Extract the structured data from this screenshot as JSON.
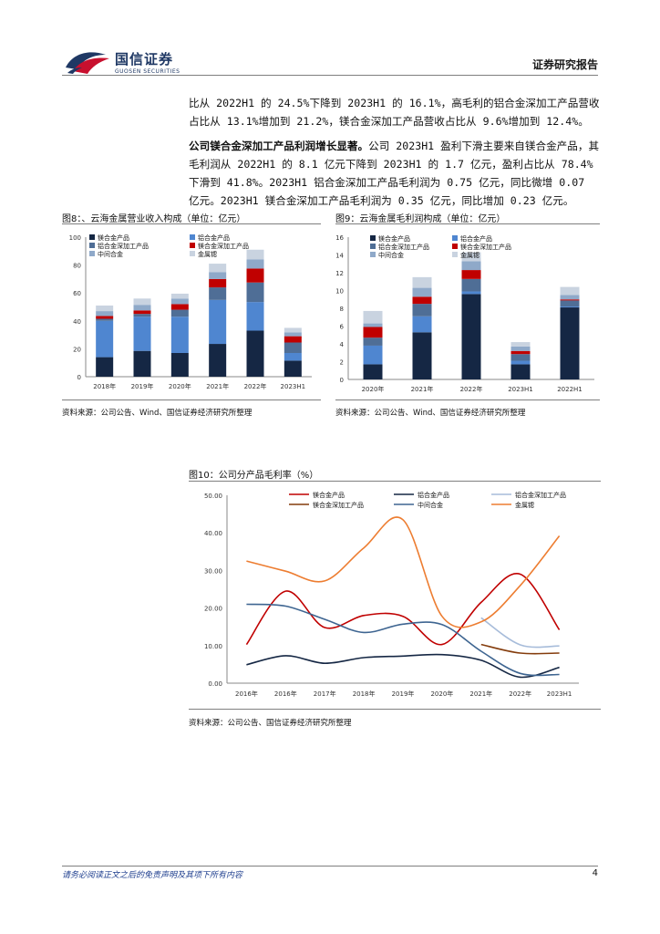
{
  "header": {
    "brand_cn": "国信证券",
    "brand_en": "GUOSEN SECURITIES",
    "report_type": "证券研究报告",
    "accent_color": "#1f3864",
    "logo_red": "#c8102e"
  },
  "body": {
    "para1": "比从 2022H1 的 24.5%下降到 2023H1 的 16.1%，高毛利的铝合金深加工产品营收占比从 13.1%增加到 21.2%，镁合金深加工产品营收占比从 9.6%增加到 12.4%。",
    "para2_bold": "公司镁合金深加工产品利润增长显著。",
    "para2_rest": "公司 2023H1 盈利下滑主要来自镁合金产品，其毛利润从 2022H1 的 8.1 亿元下降到 2023H1 的 1.7 亿元，盈利占比从 78.4%下滑到 41.8%。2023H1 铝合金深加工产品毛利润为 0.75 亿元，同比微增 0.07 亿元。2023H1 镁合金深加工产品毛利润为 0.35 亿元，同比增加 0.23 亿元。"
  },
  "figures": {
    "fig8_caption": "图8：、云海金属营业收入构成（单位：亿元）",
    "fig9_caption": "图9：云海金属毛利润构成（单位：亿元）",
    "fig10_caption": "图10：公司分产品毛利率（%）",
    "source_wind": "资料来源：公司公告、Wind、国信证券经济研究所整理",
    "source_plain": "资料来源：公司公告、国信证券经济研究所整理"
  },
  "chart_data": [
    {
      "type": "bar",
      "stacked": true,
      "title": "云海金属营业收入构成（单位：亿元）",
      "categories": [
        "2018年",
        "2019年",
        "2020年",
        "2021年",
        "2022年",
        "2023H1"
      ],
      "ylim": [
        0,
        100
      ],
      "yticks": [
        0,
        20,
        40,
        60,
        80,
        100
      ],
      "legend": [
        "镁合金产品",
        "铝合金产品",
        "铝合金深加工产品",
        "镁合金深加工产品",
        "中间合金",
        "金属锶"
      ],
      "colors": [
        "#152744",
        "#4f86d0",
        "#4f6e96",
        "#c00000",
        "#8fa9c9",
        "#c9d3e0"
      ],
      "series": [
        {
          "name": "镁合金产品",
          "values": [
            14,
            18.5,
            17,
            23.5,
            33,
            11.5
          ]
        },
        {
          "name": "铝合金产品",
          "values": [
            26,
            24.5,
            26,
            31.5,
            20.5,
            5.5
          ]
        },
        {
          "name": "铝合金深加工产品",
          "values": [
            1.5,
            2,
            5,
            9,
            14,
            7.5
          ]
        },
        {
          "name": "镁合金深加工产品",
          "values": [
            2,
            2.5,
            4,
            6,
            10,
            4.5
          ]
        },
        {
          "name": "中间合金",
          "values": [
            3.5,
            4,
            4,
            5,
            6.5,
            2.8
          ]
        },
        {
          "name": "金属锶",
          "values": [
            4,
            4.5,
            3.5,
            6,
            7,
            3.2
          ]
        }
      ]
    },
    {
      "type": "bar",
      "stacked": true,
      "title": "云海金属毛利润构成（单位：亿元）",
      "categories": [
        "2020年",
        "2021年",
        "2022年",
        "2023H1",
        "2022H1"
      ],
      "ylim": [
        0,
        16
      ],
      "yticks": [
        0,
        2,
        4,
        6,
        8,
        10,
        12,
        14,
        16
      ],
      "legend": [
        "镁合金产品",
        "铝合金产品",
        "铝合金深加工产品",
        "镁合金深加工产品",
        "中间合金",
        "金属锶"
      ],
      "colors": [
        "#152744",
        "#4f86d0",
        "#4f6e96",
        "#c00000",
        "#8fa9c9",
        "#c9d3e0"
      ],
      "series": [
        {
          "name": "镁合金产品",
          "values": [
            1.7,
            5.3,
            9.6,
            1.7,
            8.1
          ]
        },
        {
          "name": "铝合金产品",
          "values": [
            2.1,
            1.8,
            0.3,
            0.4,
            0.1
          ]
        },
        {
          "name": "铝合金深加工产品",
          "values": [
            0.9,
            1.4,
            1.4,
            0.75,
            0.68
          ]
        },
        {
          "name": "镁合金深加工产品",
          "values": [
            1.2,
            0.8,
            1.0,
            0.35,
            0.12
          ]
        },
        {
          "name": "中间合金",
          "values": [
            0.4,
            1.0,
            1.0,
            0.5,
            0.5
          ]
        },
        {
          "name": "金属锶",
          "values": [
            1.4,
            1.2,
            1.0,
            0.5,
            0.9
          ]
        }
      ]
    },
    {
      "type": "line",
      "title": "公司分产品毛利率（%）",
      "categories": [
        "2016年",
        "2016年",
        "2017年",
        "2018年",
        "2019年",
        "2020年",
        "2021年",
        "2022年",
        "2023H1"
      ],
      "ylim": [
        0,
        50
      ],
      "yticks": [
        "0.00",
        "10.00",
        "20.00",
        "30.00",
        "40.00",
        "50.00"
      ],
      "series": [
        {
          "name": "镁合金产品",
          "color": "#c00000",
          "values": [
            10.3,
            24.5,
            14.8,
            18.0,
            17.8,
            10.3,
            21.5,
            29.0,
            14.2
          ]
        },
        {
          "name": "铝合金产品",
          "color": "#152744",
          "values": [
            4.9,
            7.3,
            5.3,
            6.8,
            7.2,
            7.6,
            6.1,
            1.6,
            4.2
          ]
        },
        {
          "name": "铝合金深加工产品",
          "color": "#a7bcda",
          "values": [
            null,
            null,
            null,
            null,
            null,
            null,
            17.4,
            10.2,
            9.9
          ]
        },
        {
          "name": "镁合金深加工产品",
          "color": "#843c0c",
          "values": [
            null,
            null,
            null,
            null,
            null,
            null,
            10.3,
            8.0,
            8.0
          ]
        },
        {
          "name": "中间合金",
          "color": "#3e6591",
          "values": [
            21.0,
            20.5,
            17.0,
            13.5,
            15.7,
            15.6,
            8.5,
            2.6,
            2.3
          ]
        },
        {
          "name": "金属锶",
          "color": "#ed7d31",
          "values": [
            32.5,
            29.8,
            27.2,
            36.0,
            43.5,
            17.8,
            16.3,
            26.0,
            39.2
          ]
        }
      ]
    }
  ],
  "footer": {
    "disclaimer": "请务必阅读正文之后的免责声明及其项下所有内容",
    "page_number": "4"
  }
}
